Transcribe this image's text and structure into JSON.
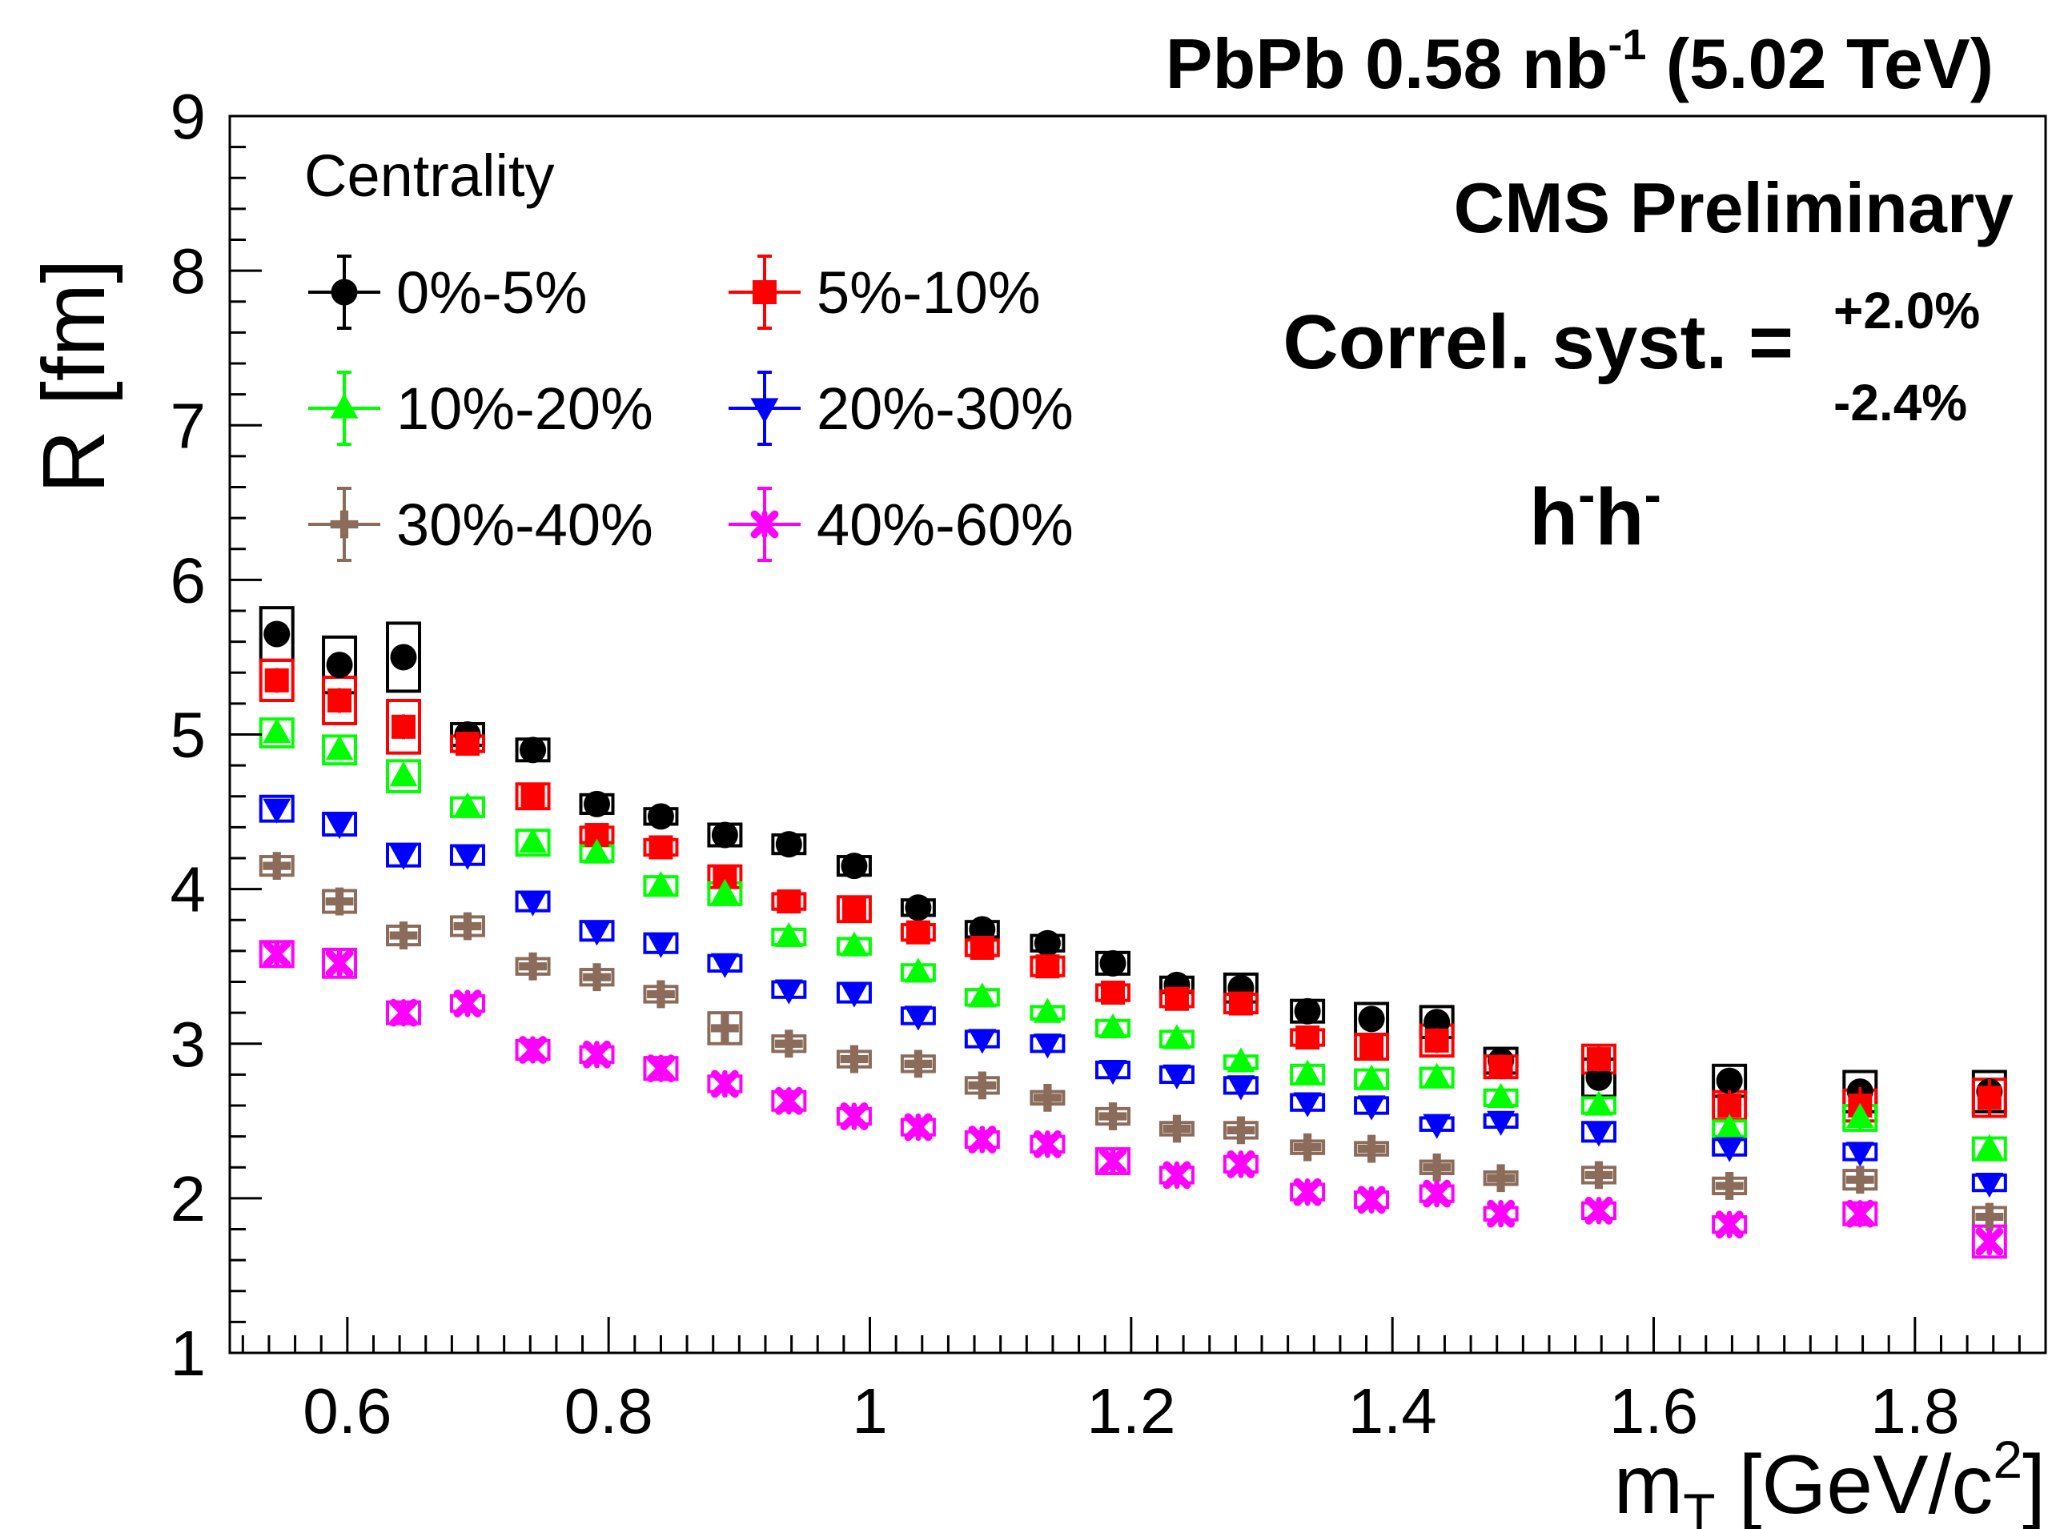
{
  "header": {
    "lumi_prefix": "PbPb 0.58 nb",
    "lumi_exp": "-1",
    "lumi_suffix": " (5.02 TeV)",
    "experiment": "CMS Preliminary",
    "syst_label": "Correl. syst. =",
    "syst_plus": "+2.0%",
    "syst_minus": "-2.4%",
    "pair_base1": "h",
    "pair_sup1": "-",
    "pair_base2": "h",
    "pair_sup2": "-"
  },
  "legend": {
    "title": "Centrality"
  },
  "chart_data": {
    "type": "scatter",
    "xlabel_main": "m",
    "xlabel_sub": "T",
    "xlabel_rest": " [GeV/c",
    "xlabel_sup": "2",
    "xlabel_end": "]",
    "ylabel": "R [fm]",
    "xlim": [
      0.51,
      1.9
    ],
    "ylim": [
      1,
      9
    ],
    "xticks": [
      0.6,
      0.8,
      1,
      1.2,
      1.4,
      1.6,
      1.8
    ],
    "xtick_labels": [
      "0.6",
      "0.8",
      "1",
      "1.2",
      "1.4",
      "1.6",
      "1.8"
    ],
    "yticks": [
      1,
      2,
      3,
      4,
      5,
      6,
      7,
      8,
      9
    ],
    "ytick_labels": [
      "1",
      "2",
      "3",
      "4",
      "5",
      "6",
      "7",
      "8",
      "9"
    ],
    "x": [
      0.546,
      0.594,
      0.643,
      0.692,
      0.742,
      0.791,
      0.84,
      0.889,
      0.938,
      0.988,
      1.037,
      1.086,
      1.136,
      1.186,
      1.235,
      1.284,
      1.335,
      1.384,
      1.434,
      1.483,
      1.558,
      1.658,
      1.758,
      1.857
    ],
    "series": [
      {
        "name": "0%-5%",
        "color": "#000000",
        "marker": "circle",
        "values": [
          5.65,
          5.45,
          5.5,
          5.0,
          4.9,
          4.55,
          4.47,
          4.35,
          4.29,
          4.15,
          3.88,
          3.74,
          3.65,
          3.52,
          3.38,
          3.36,
          3.21,
          3.16,
          3.14,
          2.89,
          2.78,
          2.76,
          2.69,
          2.69
        ],
        "syst": [
          0.17,
          0.18,
          0.22,
          0.07,
          0.07,
          0.06,
          0.05,
          0.07,
          0.06,
          0.06,
          0.05,
          0.05,
          0.05,
          0.07,
          0.05,
          0.09,
          0.07,
          0.1,
          0.1,
          0.08,
          0.12,
          0.1,
          0.13,
          0.13
        ],
        "stat": [
          0.05,
          0.05,
          0.05,
          0.05,
          0.05,
          0.05,
          0.05,
          0.05,
          0.05,
          0.05,
          0.05,
          0.05,
          0.05,
          0.05,
          0.05,
          0.05,
          0.05,
          0.05,
          0.05,
          0.05,
          0.05,
          0.05,
          0.05,
          0.05
        ]
      },
      {
        "name": "5%-10%",
        "color": "#ff0000",
        "marker": "square",
        "values": [
          5.35,
          5.22,
          5.05,
          4.94,
          4.6,
          4.35,
          4.27,
          4.08,
          3.92,
          3.87,
          3.72,
          3.62,
          3.5,
          3.33,
          3.29,
          3.26,
          3.04,
          2.98,
          3.02,
          2.85,
          2.9,
          2.6,
          2.6,
          2.65
        ],
        "syst": [
          0.13,
          0.15,
          0.17,
          0.05,
          0.08,
          0.05,
          0.05,
          0.07,
          0.05,
          0.08,
          0.05,
          0.05,
          0.06,
          0.05,
          0.05,
          0.06,
          0.05,
          0.08,
          0.1,
          0.07,
          0.09,
          0.09,
          0.1,
          0.12
        ],
        "stat": [
          0.08,
          0.08,
          0.08,
          0.06,
          0.06,
          0.06,
          0.06,
          0.06,
          0.06,
          0.06,
          0.06,
          0.06,
          0.06,
          0.06,
          0.06,
          0.06,
          0.06,
          0.06,
          0.08,
          0.08,
          0.08,
          0.1,
          0.12,
          0.12
        ]
      },
      {
        "name": "10%-20%",
        "color": "#00ff00",
        "marker": "triangle-up",
        "values": [
          5.01,
          4.9,
          4.73,
          4.53,
          4.3,
          4.23,
          4.02,
          3.97,
          3.69,
          3.63,
          3.46,
          3.3,
          3.2,
          3.1,
          3.03,
          2.88,
          2.8,
          2.77,
          2.78,
          2.65,
          2.6,
          2.45,
          2.52,
          2.32
        ],
        "syst": [
          0.09,
          0.09,
          0.1,
          0.06,
          0.08,
          0.05,
          0.06,
          0.07,
          0.05,
          0.05,
          0.05,
          0.05,
          0.04,
          0.05,
          0.05,
          0.04,
          0.06,
          0.06,
          0.06,
          0.05,
          0.05,
          0.05,
          0.08,
          0.07
        ],
        "stat": [
          0.05,
          0.05,
          0.05,
          0.05,
          0.05,
          0.05,
          0.05,
          0.05,
          0.05,
          0.05,
          0.05,
          0.05,
          0.05,
          0.05,
          0.05,
          0.05,
          0.05,
          0.05,
          0.05,
          0.05,
          0.05,
          0.05,
          0.08,
          0.08
        ]
      },
      {
        "name": "20%-30%",
        "color": "#0000ff",
        "marker": "triangle-down",
        "values": [
          4.52,
          4.42,
          4.22,
          4.22,
          3.92,
          3.73,
          3.65,
          3.52,
          3.35,
          3.33,
          3.18,
          3.03,
          3.0,
          2.83,
          2.8,
          2.73,
          2.62,
          2.6,
          2.48,
          2.5,
          2.43,
          2.33,
          2.3,
          2.1
        ],
        "syst": [
          0.08,
          0.07,
          0.07,
          0.06,
          0.06,
          0.06,
          0.06,
          0.05,
          0.05,
          0.06,
          0.05,
          0.05,
          0.05,
          0.05,
          0.05,
          0.05,
          0.05,
          0.05,
          0.04,
          0.04,
          0.06,
          0.05,
          0.05,
          0.05
        ],
        "stat": [
          0.05,
          0.05,
          0.05,
          0.05,
          0.05,
          0.05,
          0.05,
          0.05,
          0.05,
          0.05,
          0.05,
          0.05,
          0.05,
          0.05,
          0.05,
          0.05,
          0.05,
          0.05,
          0.05,
          0.05,
          0.05,
          0.05,
          0.05,
          0.05
        ]
      },
      {
        "name": "30%-40%",
        "color": "#8b6b5a",
        "marker": "cross",
        "values": [
          4.15,
          3.92,
          3.7,
          3.76,
          3.5,
          3.43,
          3.32,
          3.1,
          3.0,
          2.9,
          2.87,
          2.73,
          2.65,
          2.53,
          2.45,
          2.44,
          2.33,
          2.32,
          2.2,
          2.13,
          2.15,
          2.08,
          2.12,
          1.88
        ],
        "syst": [
          0.06,
          0.07,
          0.06,
          0.06,
          0.05,
          0.05,
          0.05,
          0.1,
          0.05,
          0.05,
          0.05,
          0.05,
          0.04,
          0.05,
          0.04,
          0.05,
          0.04,
          0.04,
          0.04,
          0.04,
          0.05,
          0.05,
          0.06,
          0.06
        ],
        "stat": [
          0.05,
          0.05,
          0.05,
          0.05,
          0.05,
          0.05,
          0.05,
          0.05,
          0.05,
          0.05,
          0.05,
          0.05,
          0.05,
          0.05,
          0.05,
          0.05,
          0.05,
          0.05,
          0.05,
          0.05,
          0.05,
          0.05,
          0.05,
          0.05
        ]
      },
      {
        "name": "40%-60%",
        "color": "#ff00ff",
        "marker": "star",
        "values": [
          3.58,
          3.52,
          3.2,
          3.26,
          2.96,
          2.93,
          2.84,
          2.74,
          2.63,
          2.53,
          2.46,
          2.38,
          2.35,
          2.24,
          2.15,
          2.22,
          2.04,
          1.99,
          2.03,
          1.9,
          1.92,
          1.83,
          1.9,
          1.72
        ],
        "syst": [
          0.08,
          0.09,
          0.07,
          0.05,
          0.06,
          0.05,
          0.07,
          0.05,
          0.06,
          0.05,
          0.05,
          0.05,
          0.05,
          0.08,
          0.05,
          0.05,
          0.05,
          0.05,
          0.05,
          0.04,
          0.05,
          0.05,
          0.07,
          0.1
        ],
        "stat": [
          0.05,
          0.05,
          0.05,
          0.05,
          0.05,
          0.05,
          0.05,
          0.05,
          0.05,
          0.05,
          0.05,
          0.05,
          0.05,
          0.05,
          0.05,
          0.05,
          0.05,
          0.05,
          0.05,
          0.05,
          0.05,
          0.05,
          0.08,
          0.08
        ]
      }
    ]
  }
}
